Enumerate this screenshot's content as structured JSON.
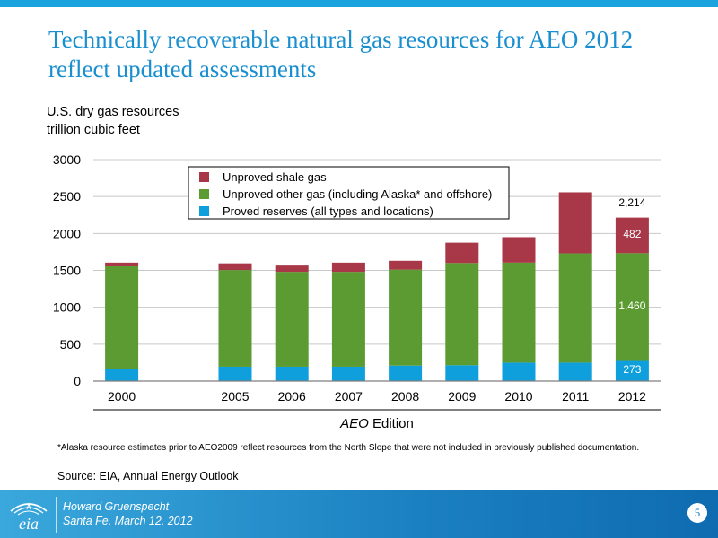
{
  "header": {
    "title_line1": "Technically recoverable natural gas resources for AEO 2012",
    "title_line2": "reflect updated assessments"
  },
  "chart_meta": {
    "units_line1": "U.S. dry gas resources",
    "units_line2": "trillion cubic feet"
  },
  "chart_data": {
    "type": "bar",
    "stacked": true,
    "categories": [
      "2000",
      "",
      "2005",
      "2006",
      "2007",
      "2008",
      "2009",
      "2010",
      "2011",
      "2012"
    ],
    "series": [
      {
        "name": "Proved reserves (all types and locations)",
        "color": "#0f9fdc",
        "values": [
          170,
          null,
          195,
          195,
          195,
          210,
          215,
          250,
          250,
          273
        ]
      },
      {
        "name": "Unproved other gas (including Alaska* and offshore)",
        "color": "#5b9b32",
        "values": [
          1385,
          null,
          1310,
          1285,
          1285,
          1300,
          1385,
          1355,
          1480,
          1460
        ]
      },
      {
        "name": "Unproved shale gas",
        "color": "#a83747",
        "values": [
          50,
          null,
          90,
          85,
          125,
          120,
          275,
          345,
          827,
          482
        ]
      }
    ],
    "ylim": [
      0,
      3000
    ],
    "yticks": [
      0,
      500,
      1000,
      1500,
      2000,
      2500,
      3000
    ],
    "xlabel_italic": "AEO",
    "xlabel_rest": " Edition",
    "data_labels": {
      "total_2012": "2,214",
      "shale_2012": "482",
      "other_2012": "1,460",
      "proved_2012": "273"
    },
    "legend_position": "top-center",
    "grid": true
  },
  "footnote": "*Alaska resource estimates prior to AEO2009 reflect resources from the North Slope that were not included in previously published documentation.",
  "source": "Source:  EIA, Annual Energy Outlook",
  "footer": {
    "logo_text": "eia",
    "presenter": "Howard Gruenspecht",
    "event": "Santa Fe, March 12, 2012",
    "page_number": "5"
  }
}
